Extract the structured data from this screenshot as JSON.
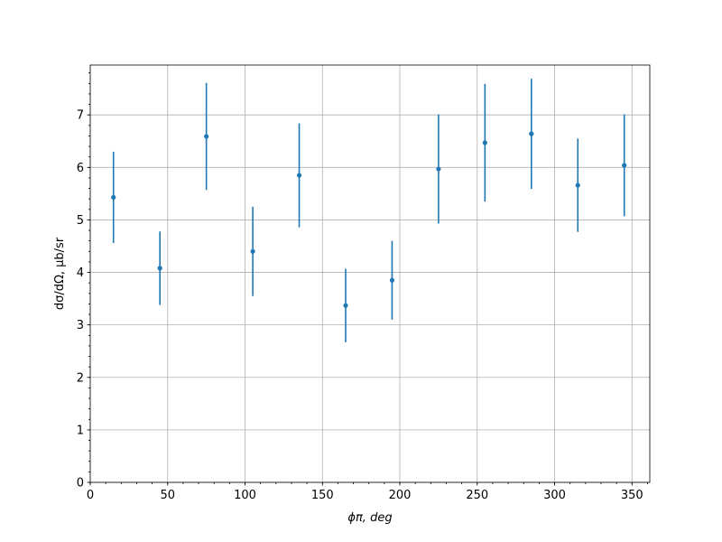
{
  "chart_data": {
    "type": "errorbar",
    "xlabel": "ϕπ, deg",
    "ylabel": "dσ/dΩ, μb/sr",
    "x": [
      15,
      45,
      75,
      105,
      135,
      165,
      195,
      225,
      255,
      285,
      315,
      345
    ],
    "values": [
      5.43,
      4.08,
      6.59,
      4.4,
      5.85,
      3.37,
      3.85,
      5.97,
      6.47,
      6.64,
      5.66,
      6.04
    ],
    "errors": [
      0.87,
      0.7,
      1.02,
      0.85,
      0.99,
      0.7,
      0.75,
      1.04,
      1.12,
      1.05,
      0.89,
      0.97
    ],
    "color": "#1f77b4",
    "xlim": [
      0,
      361.5
    ],
    "ylim": [
      0,
      7.95
    ],
    "xticks": [
      0,
      50,
      100,
      150,
      200,
      250,
      300,
      350
    ],
    "yticks": [
      0,
      1,
      2,
      3,
      4,
      5,
      6,
      7
    ],
    "grid": true,
    "minor_ticks": true
  }
}
